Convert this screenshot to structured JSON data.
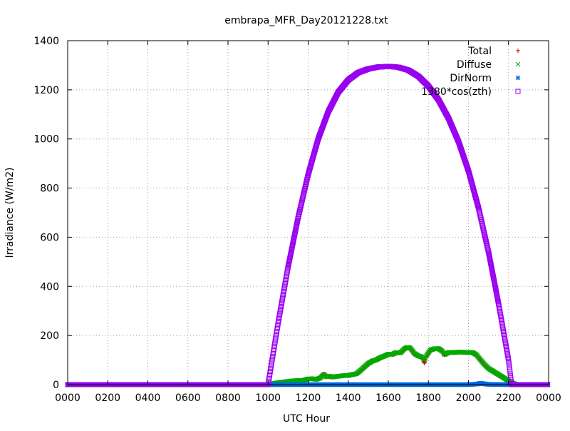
{
  "chart_data": {
    "type": "scatter",
    "title": "embrapa_MFR_Day20121228.txt",
    "xlabel": "UTC Hour",
    "ylabel": "Irradiance (W/m2)",
    "xlim": [
      0,
      24
    ],
    "ylim": [
      0,
      1400
    ],
    "xticks": [
      "0000",
      "0200",
      "0400",
      "0600",
      "0800",
      "1000",
      "1200",
      "1400",
      "1600",
      "1800",
      "2000",
      "2200",
      "0000"
    ],
    "yticks": [
      "0",
      "200",
      "400",
      "600",
      "800",
      "1000",
      "1200",
      "1400"
    ],
    "grid": true,
    "legend_position": "top-right",
    "series": [
      {
        "name": "Total",
        "color": "#cc0000",
        "marker": "plus",
        "points": [
          [
            0.0,
            0
          ],
          [
            2.0,
            0
          ],
          [
            4.0,
            0
          ],
          [
            6.0,
            0
          ],
          [
            8.0,
            0
          ],
          [
            10.0,
            0
          ],
          [
            10.3,
            5
          ],
          [
            10.6,
            8
          ],
          [
            10.9,
            12
          ],
          [
            11.2,
            14
          ],
          [
            11.5,
            18
          ],
          [
            11.7,
            16
          ],
          [
            12.0,
            22
          ],
          [
            12.2,
            25
          ],
          [
            12.4,
            20
          ],
          [
            12.6,
            28
          ],
          [
            12.8,
            45
          ],
          [
            12.9,
            30
          ],
          [
            13.0,
            35
          ],
          [
            13.2,
            30
          ],
          [
            13.4,
            32
          ],
          [
            13.6,
            35
          ],
          [
            13.8,
            38
          ],
          [
            14.0,
            36
          ],
          [
            14.2,
            40
          ],
          [
            14.4,
            42
          ],
          [
            14.6,
            55
          ],
          [
            14.8,
            70
          ],
          [
            15.0,
            85
          ],
          [
            15.2,
            95
          ],
          [
            15.4,
            100
          ],
          [
            15.6,
            108
          ],
          [
            15.8,
            115
          ],
          [
            16.0,
            125
          ],
          [
            16.2,
            122
          ],
          [
            16.4,
            130
          ],
          [
            16.6,
            128
          ],
          [
            16.8,
            145
          ],
          [
            16.95,
            150
          ],
          [
            17.1,
            148
          ],
          [
            17.3,
            125
          ],
          [
            17.5,
            115
          ],
          [
            17.7,
            110
          ],
          [
            17.8,
            85
          ],
          [
            17.9,
            115
          ],
          [
            18.1,
            140
          ],
          [
            18.3,
            145
          ],
          [
            18.5,
            148
          ],
          [
            18.7,
            135
          ],
          [
            18.8,
            120
          ],
          [
            19.0,
            130
          ],
          [
            19.3,
            130
          ],
          [
            19.6,
            132
          ],
          [
            19.9,
            130
          ],
          [
            20.2,
            130
          ],
          [
            20.4,
            120
          ],
          [
            20.6,
            100
          ],
          [
            20.8,
            80
          ],
          [
            21.0,
            65
          ],
          [
            21.3,
            50
          ],
          [
            21.6,
            35
          ],
          [
            21.9,
            20
          ],
          [
            22.1,
            10
          ],
          [
            22.3,
            3
          ],
          [
            22.5,
            0
          ],
          [
            23.0,
            0
          ],
          [
            24.0,
            0
          ]
        ]
      },
      {
        "name": "Diffuse",
        "color": "#00aa00",
        "marker": "cross",
        "points": [
          [
            0.0,
            0
          ],
          [
            2.0,
            0
          ],
          [
            4.0,
            0
          ],
          [
            6.0,
            0
          ],
          [
            8.0,
            0
          ],
          [
            10.0,
            0
          ],
          [
            10.3,
            5
          ],
          [
            10.6,
            9
          ],
          [
            10.9,
            12
          ],
          [
            11.2,
            15
          ],
          [
            11.5,
            17
          ],
          [
            11.7,
            16
          ],
          [
            12.0,
            23
          ],
          [
            12.2,
            24
          ],
          [
            12.4,
            21
          ],
          [
            12.6,
            27
          ],
          [
            12.8,
            43
          ],
          [
            12.9,
            31
          ],
          [
            13.0,
            35
          ],
          [
            13.2,
            31
          ],
          [
            13.4,
            33
          ],
          [
            13.6,
            35
          ],
          [
            13.8,
            37
          ],
          [
            14.0,
            37
          ],
          [
            14.2,
            41
          ],
          [
            14.4,
            44
          ],
          [
            14.6,
            57
          ],
          [
            14.8,
            72
          ],
          [
            15.0,
            86
          ],
          [
            15.2,
            96
          ],
          [
            15.4,
            101
          ],
          [
            15.6,
            110
          ],
          [
            15.8,
            116
          ],
          [
            16.0,
            124
          ],
          [
            16.2,
            123
          ],
          [
            16.4,
            131
          ],
          [
            16.6,
            129
          ],
          [
            16.8,
            146
          ],
          [
            16.95,
            152
          ],
          [
            17.1,
            149
          ],
          [
            17.3,
            127
          ],
          [
            17.5,
            117
          ],
          [
            17.7,
            112
          ],
          [
            17.8,
            98
          ],
          [
            17.9,
            118
          ],
          [
            18.1,
            141
          ],
          [
            18.3,
            146
          ],
          [
            18.5,
            147
          ],
          [
            18.7,
            136
          ],
          [
            18.8,
            122
          ],
          [
            19.0,
            131
          ],
          [
            19.3,
            131
          ],
          [
            19.6,
            133
          ],
          [
            19.9,
            131
          ],
          [
            20.2,
            131
          ],
          [
            20.4,
            121
          ],
          [
            20.6,
            101
          ],
          [
            20.8,
            82
          ],
          [
            21.0,
            66
          ],
          [
            21.3,
            51
          ],
          [
            21.6,
            36
          ],
          [
            21.9,
            21
          ],
          [
            22.1,
            11
          ],
          [
            22.3,
            3
          ],
          [
            22.5,
            0
          ],
          [
            23.0,
            0
          ],
          [
            24.0,
            0
          ]
        ]
      },
      {
        "name": "DirNorm",
        "color": "#0066dd",
        "marker": "star",
        "points": [
          [
            0.0,
            0
          ],
          [
            2.0,
            0
          ],
          [
            4.0,
            0
          ],
          [
            6.0,
            0
          ],
          [
            8.0,
            0
          ],
          [
            10.0,
            0
          ],
          [
            12.0,
            0
          ],
          [
            14.0,
            0
          ],
          [
            16.0,
            0
          ],
          [
            18.0,
            0
          ],
          [
            20.0,
            0
          ],
          [
            20.5,
            3
          ],
          [
            20.6,
            6
          ],
          [
            20.7,
            4
          ],
          [
            21.0,
            1
          ],
          [
            22.0,
            0
          ],
          [
            24.0,
            0
          ]
        ]
      },
      {
        "name": "1380*cos(zth)",
        "color": "#9900ee",
        "marker": "square",
        "curve": "cosine-envelope",
        "x_sunrise": 10.0,
        "x_noon": 16.05,
        "x_sunset": 22.15,
        "peak": 1295,
        "points": [
          [
            10.0,
            0
          ],
          [
            10.5,
            250
          ],
          [
            11.0,
            480
          ],
          [
            11.5,
            680
          ],
          [
            12.0,
            855
          ],
          [
            12.5,
            1000
          ],
          [
            13.0,
            1110
          ],
          [
            13.5,
            1190
          ],
          [
            14.0,
            1240
          ],
          [
            14.5,
            1270
          ],
          [
            15.0,
            1285
          ],
          [
            15.5,
            1293
          ],
          [
            16.05,
            1295
          ],
          [
            16.5,
            1292
          ],
          [
            17.0,
            1280
          ],
          [
            17.5,
            1255
          ],
          [
            18.0,
            1215
          ],
          [
            18.5,
            1160
          ],
          [
            19.0,
            1085
          ],
          [
            19.5,
            990
          ],
          [
            20.0,
            870
          ],
          [
            20.5,
            720
          ],
          [
            21.0,
            540
          ],
          [
            21.5,
            330
          ],
          [
            22.0,
            100
          ],
          [
            22.15,
            0
          ]
        ]
      }
    ]
  }
}
